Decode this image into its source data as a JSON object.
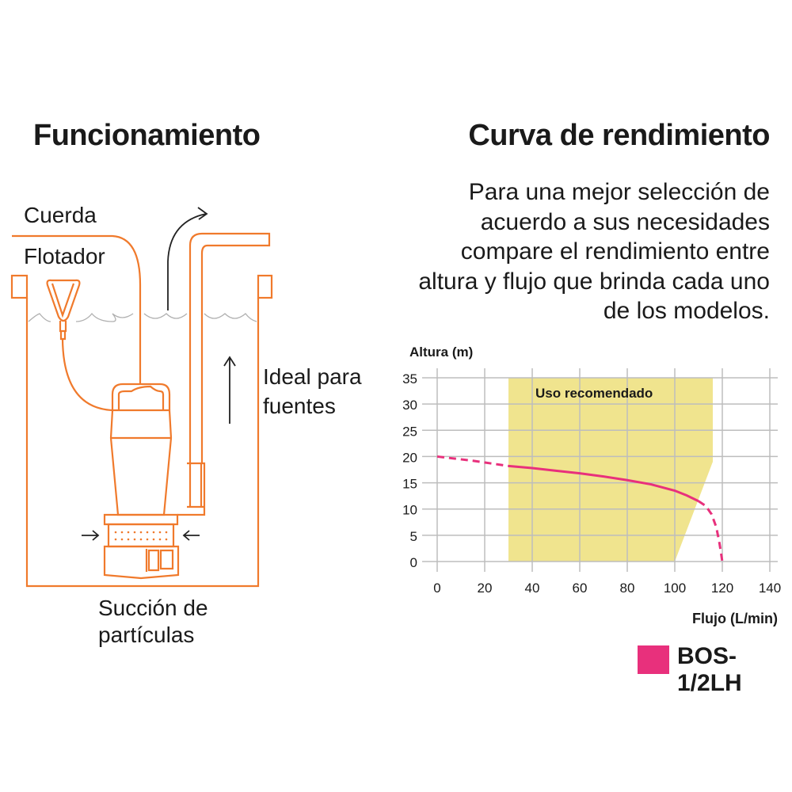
{
  "left": {
    "title": "Funcionamiento",
    "labels": {
      "cuerda": "Cuerda",
      "flotador": "Flotador",
      "ideal_line1": "Ideal para",
      "ideal_line2": "fuentes",
      "succion_line1": "Succión de",
      "succion_line2": "partículas"
    },
    "colors": {
      "diagram": "#f07a2c",
      "water": "#b0b0b0",
      "arrows": "#222222"
    }
  },
  "right": {
    "title": "Curva de rendimiento",
    "paragraph": "Para una mejor selección de acuerdo a sus necesidades compare el rendimiento entre altura y flujo que brinda cada uno de los modelos."
  },
  "chart_data": {
    "type": "line",
    "xlabel": "Flujo (L/min)",
    "ylabel": "Altura (m)",
    "xlim": [
      0,
      140
    ],
    "ylim": [
      0,
      35
    ],
    "xticks": [
      "0",
      "20",
      "40",
      "60",
      "80",
      "100",
      "120",
      "140"
    ],
    "yticks": [
      "0",
      "5",
      "10",
      "15",
      "20",
      "25",
      "30",
      "35"
    ],
    "grid": true,
    "recommended_zone": {
      "label": "Uso recomendado",
      "color": "#f0e48e",
      "polygon": [
        [
          30,
          0
        ],
        [
          30,
          35
        ],
        [
          116,
          35
        ],
        [
          116,
          19
        ],
        [
          100,
          0
        ]
      ]
    },
    "series": [
      {
        "name": "BOS-1/2LH",
        "color": "#e8307c",
        "segments": [
          {
            "style": "dashed",
            "points": [
              [
                0,
                20
              ],
              [
                15,
                19.2
              ],
              [
                30,
                18.2
              ]
            ]
          },
          {
            "style": "solid",
            "points": [
              [
                30,
                18.2
              ],
              [
                40,
                17.8
              ],
              [
                50,
                17.3
              ],
              [
                60,
                16.8
              ],
              [
                70,
                16.2
              ],
              [
                80,
                15.5
              ],
              [
                90,
                14.7
              ],
              [
                100,
                13.5
              ],
              [
                105,
                12.6
              ],
              [
                110,
                11.5
              ]
            ]
          },
          {
            "style": "dashed",
            "points": [
              [
                110,
                11.5
              ],
              [
                113,
                10.6
              ],
              [
                115.5,
                9
              ],
              [
                117.5,
                6.5
              ],
              [
                118.8,
                3.5
              ],
              [
                119.5,
                1.5
              ],
              [
                120,
                0
              ]
            ]
          }
        ]
      }
    ],
    "legend": {
      "placement": "bottom-right",
      "entries": [
        "BOS-1/2LH"
      ]
    }
  }
}
